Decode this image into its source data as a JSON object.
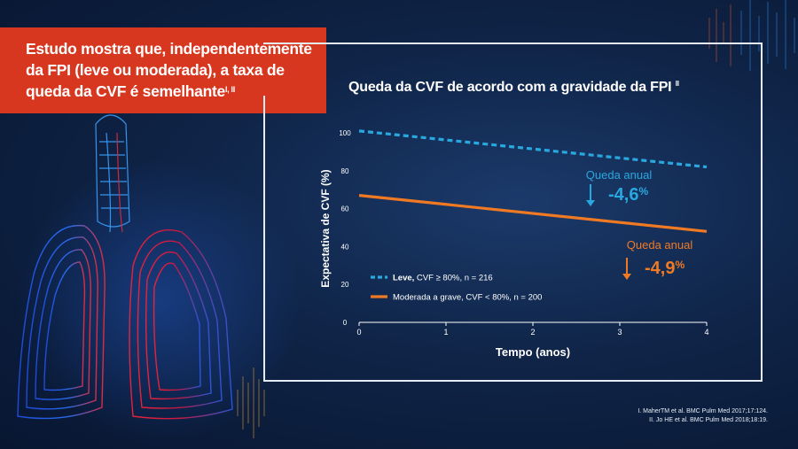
{
  "headline": {
    "text": "Estudo mostra que, independentemente da FPI (leve ou moderada), a taxa de queda da CVF é semelhante",
    "superscript": "I, II"
  },
  "chart_title": {
    "text": "Queda da CVF de acordo com a gravidade da FPI",
    "superscript": "II"
  },
  "references": [
    "I. MaherTM et al. BMC Pulm Med 2017;17:124.",
    "II. Jo HE et al. BMC Pulm Med 2018;18:19."
  ],
  "colors": {
    "headline_bg": "#d7361f",
    "series_mild": "#29a8e0",
    "series_moderate": "#f07a24",
    "text": "#ffffff"
  },
  "chart_data": {
    "type": "line",
    "title": "Queda da CVF de acordo com a gravidade da FPI",
    "xlabel": "Tempo (anos)",
    "ylabel": "Expectativa de CVF (%)",
    "xlim": [
      0,
      4
    ],
    "ylim": [
      0,
      100
    ],
    "xticks": [
      0,
      1,
      2,
      3,
      4
    ],
    "yticks": [
      0,
      20,
      40,
      60,
      80,
      100
    ],
    "grid": false,
    "legend_position": "bottom-left",
    "series": [
      {
        "name": "Leve, CVF ≥ 80%, n = 216",
        "name_bold": "Leve,",
        "name_rest": " CVF ≥ 80%, n = 216",
        "style": "dashed",
        "color": "#29a8e0",
        "x": [
          0,
          4
        ],
        "y": [
          101,
          82
        ]
      },
      {
        "name": "Moderada a grave, CVF < 80%, n = 200",
        "style": "solid",
        "color": "#f07a24",
        "x": [
          0,
          4
        ],
        "y": [
          67,
          48
        ]
      }
    ],
    "annotations": [
      {
        "series": 0,
        "label": "Queda anual",
        "value": "-4,6",
        "unit": "%",
        "color": "#29a8e0"
      },
      {
        "series": 1,
        "label": "Queda anual",
        "value": "-4,9",
        "unit": "%",
        "color": "#f07a24"
      }
    ]
  }
}
